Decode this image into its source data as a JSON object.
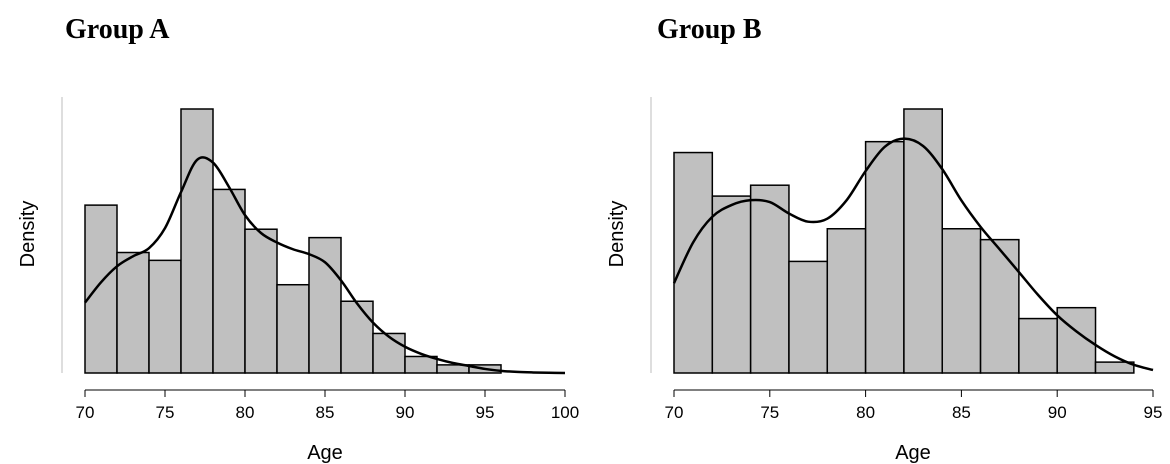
{
  "chart_data": [
    {
      "type": "bar",
      "title": "Group A",
      "xlabel": "Age",
      "ylabel": "Density",
      "xlim": [
        70,
        100
      ],
      "xticks": [
        70,
        75,
        80,
        85,
        90,
        95,
        100
      ],
      "bin_width": 2,
      "bins": [
        {
          "x0": 70,
          "x1": 72,
          "density": 0.062
        },
        {
          "x0": 72,
          "x1": 74,
          "density": 0.0445
        },
        {
          "x0": 74,
          "x1": 76,
          "density": 0.0416
        },
        {
          "x0": 76,
          "x1": 78,
          "density": 0.0975
        },
        {
          "x0": 78,
          "x1": 80,
          "density": 0.0678
        },
        {
          "x0": 80,
          "x1": 82,
          "density": 0.0531
        },
        {
          "x0": 82,
          "x1": 84,
          "density": 0.0326
        },
        {
          "x0": 84,
          "x1": 86,
          "density": 0.05
        },
        {
          "x0": 86,
          "x1": 88,
          "density": 0.0265
        },
        {
          "x0": 88,
          "x1": 90,
          "density": 0.0146
        },
        {
          "x0": 90,
          "x1": 92,
          "density": 0.0061
        },
        {
          "x0": 92,
          "x1": 94,
          "density": 0.003
        },
        {
          "x0": 94,
          "x1": 96,
          "density": 0.003
        }
      ],
      "density_curve": {
        "x": [
          70,
          71,
          72,
          73,
          74,
          75,
          76,
          77,
          78,
          79,
          80,
          81,
          82,
          83,
          84,
          85,
          86,
          87,
          88,
          89,
          90,
          91,
          92,
          93,
          94,
          95,
          96,
          97,
          98,
          99,
          100
        ],
        "y": [
          0.026,
          0.0335,
          0.0394,
          0.0431,
          0.0461,
          0.0535,
          0.0668,
          0.0787,
          0.0777,
          0.0687,
          0.0583,
          0.0517,
          0.0482,
          0.0457,
          0.0439,
          0.0409,
          0.0342,
          0.0257,
          0.0186,
          0.0134,
          0.0097,
          0.0071,
          0.0052,
          0.0037,
          0.0026,
          0.0015,
          0.0008,
          0.0004,
          0.0002,
          0.0001,
          0.0
        ]
      }
    },
    {
      "type": "bar",
      "title": "Group B",
      "xlabel": "Age",
      "ylabel": "Density",
      "xlim": [
        70,
        95
      ],
      "xticks": [
        70,
        75,
        80,
        85,
        90,
        95
      ],
      "bin_width": 2,
      "bins": [
        {
          "x0": 70,
          "x1": 72,
          "density": 0.081
        },
        {
          "x0": 72,
          "x1": 74,
          "density": 0.065
        },
        {
          "x0": 74,
          "x1": 76,
          "density": 0.069
        },
        {
          "x0": 76,
          "x1": 78,
          "density": 0.041
        },
        {
          "x0": 78,
          "x1": 80,
          "density": 0.053
        },
        {
          "x0": 80,
          "x1": 82,
          "density": 0.085
        },
        {
          "x0": 82,
          "x1": 84,
          "density": 0.097
        },
        {
          "x0": 84,
          "x1": 86,
          "density": 0.053
        },
        {
          "x0": 86,
          "x1": 88,
          "density": 0.049
        },
        {
          "x0": 88,
          "x1": 90,
          "density": 0.02
        },
        {
          "x0": 90,
          "x1": 92,
          "density": 0.024
        },
        {
          "x0": 92,
          "x1": 94,
          "density": 0.004
        }
      ],
      "density_curve": {
        "x": [
          70,
          71,
          72,
          73,
          74,
          75,
          76,
          77,
          78,
          79,
          80,
          81,
          82,
          83,
          84,
          85,
          86,
          87,
          88,
          89,
          90,
          91,
          92,
          93,
          94,
          95
        ],
        "y": [
          0.033,
          0.048,
          0.0574,
          0.0617,
          0.0635,
          0.0628,
          0.0586,
          0.0556,
          0.0567,
          0.0634,
          0.0742,
          0.0831,
          0.0861,
          0.0834,
          0.0749,
          0.0634,
          0.0537,
          0.0454,
          0.0371,
          0.0287,
          0.0212,
          0.0153,
          0.0103,
          0.0061,
          0.003,
          0.0011
        ]
      }
    }
  ]
}
